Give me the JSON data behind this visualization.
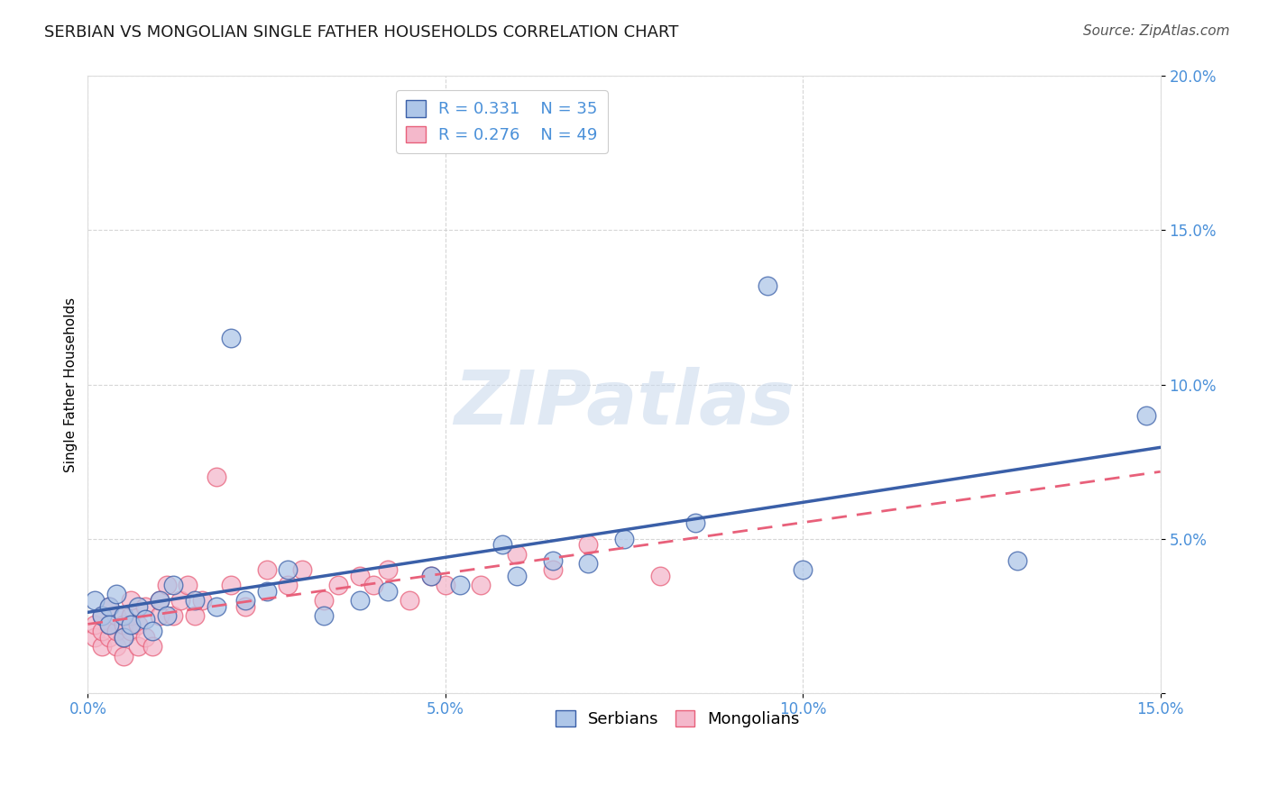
{
  "title": "SERBIAN VS MONGOLIAN SINGLE FATHER HOUSEHOLDS CORRELATION CHART",
  "source": "Source: ZipAtlas.com",
  "ylabel": "Single Father Households",
  "xlabel": "",
  "xlim": [
    0.0,
    0.15
  ],
  "ylim": [
    0.0,
    0.2
  ],
  "xticks": [
    0.0,
    0.05,
    0.1,
    0.15
  ],
  "yticks": [
    0.0,
    0.05,
    0.1,
    0.15,
    0.2
  ],
  "xticklabels": [
    "0.0%",
    "5.0%",
    "10.0%",
    "15.0%"
  ],
  "yticklabels": [
    "",
    "5.0%",
    "10.0%",
    "15.0%",
    "20.0%"
  ],
  "serbian_R": 0.331,
  "serbian_N": 35,
  "mongolian_R": 0.276,
  "mongolian_N": 49,
  "serbian_color": "#aec6e8",
  "mongolian_color": "#f4b8cb",
  "serbian_line_color": "#3a5fa8",
  "mongolian_line_color": "#e8607a",
  "legend_label_serbian": "Serbians",
  "legend_label_mongolian": "Mongolians",
  "serbian_x": [
    0.001,
    0.002,
    0.003,
    0.003,
    0.004,
    0.005,
    0.005,
    0.006,
    0.007,
    0.008,
    0.009,
    0.01,
    0.011,
    0.012,
    0.015,
    0.018,
    0.02,
    0.022,
    0.025,
    0.028,
    0.033,
    0.038,
    0.042,
    0.048,
    0.052,
    0.058,
    0.06,
    0.065,
    0.07,
    0.075,
    0.085,
    0.095,
    0.1,
    0.13,
    0.148
  ],
  "serbian_y": [
    0.03,
    0.025,
    0.028,
    0.022,
    0.032,
    0.018,
    0.025,
    0.022,
    0.028,
    0.024,
    0.02,
    0.03,
    0.025,
    0.035,
    0.03,
    0.028,
    0.115,
    0.03,
    0.033,
    0.04,
    0.025,
    0.03,
    0.033,
    0.038,
    0.035,
    0.048,
    0.038,
    0.043,
    0.042,
    0.05,
    0.055,
    0.132,
    0.04,
    0.043,
    0.09
  ],
  "mongolian_x": [
    0.001,
    0.001,
    0.002,
    0.002,
    0.002,
    0.003,
    0.003,
    0.003,
    0.004,
    0.004,
    0.004,
    0.005,
    0.005,
    0.005,
    0.006,
    0.006,
    0.006,
    0.007,
    0.007,
    0.008,
    0.008,
    0.009,
    0.01,
    0.01,
    0.011,
    0.012,
    0.013,
    0.014,
    0.015,
    0.016,
    0.018,
    0.02,
    0.022,
    0.025,
    0.028,
    0.03,
    0.033,
    0.035,
    0.038,
    0.04,
    0.042,
    0.045,
    0.048,
    0.05,
    0.055,
    0.06,
    0.065,
    0.07,
    0.08
  ],
  "mongolian_y": [
    0.018,
    0.022,
    0.015,
    0.02,
    0.025,
    0.018,
    0.022,
    0.028,
    0.015,
    0.02,
    0.025,
    0.012,
    0.018,
    0.022,
    0.02,
    0.025,
    0.03,
    0.015,
    0.022,
    0.018,
    0.028,
    0.015,
    0.025,
    0.03,
    0.035,
    0.025,
    0.03,
    0.035,
    0.025,
    0.03,
    0.07,
    0.035,
    0.028,
    0.04,
    0.035,
    0.04,
    0.03,
    0.035,
    0.038,
    0.035,
    0.04,
    0.03,
    0.038,
    0.035,
    0.035,
    0.045,
    0.04,
    0.048,
    0.038
  ],
  "background_color": "#ffffff",
  "grid_color": "#cccccc",
  "watermark": "ZIPatlas",
  "title_fontsize": 13,
  "axis_label_fontsize": 11,
  "tick_fontsize": 12,
  "legend_fontsize": 13,
  "source_fontsize": 11
}
